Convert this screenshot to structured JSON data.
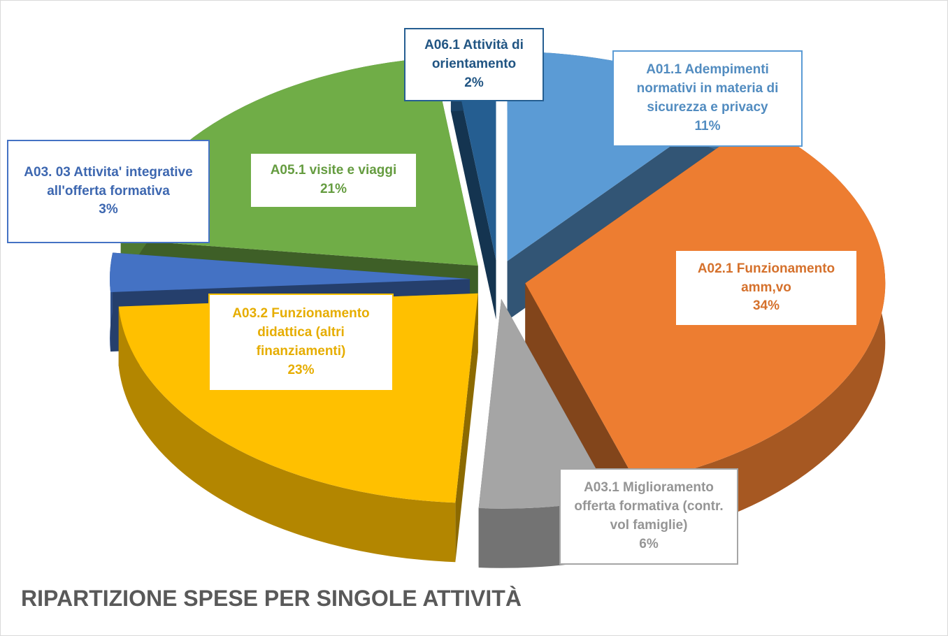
{
  "chart_data": {
    "type": "pie",
    "title": "RIPARTIZIONE SPESE PER SINGOLE ATTIVITÀ",
    "categories": [
      "A01.1 Adempimenti normativi in materia di sicurezza e privacy",
      "A02.1 Funzionamento amm,vo",
      "A03.1 Miglioramento offerta formativa (contr. vol famiglie)",
      "A03.2 Funzionamento didattica (altri finanziamenti)",
      "A03. 03 Attivita' integrative all'offerta formativa",
      "A05.1 visite e viaggi",
      "A06.1 Attività di orientamento"
    ],
    "values": [
      11,
      34,
      6,
      23,
      3,
      21,
      2
    ],
    "value_labels": [
      "11%",
      "34%",
      "6%",
      "23%",
      "3%",
      "21%",
      "2%"
    ],
    "colors": [
      "#5b9bd5",
      "#ed7d31",
      "#a5a5a5",
      "#ffc000",
      "#4472c4",
      "#70ad47",
      "#255e91"
    ]
  }
}
